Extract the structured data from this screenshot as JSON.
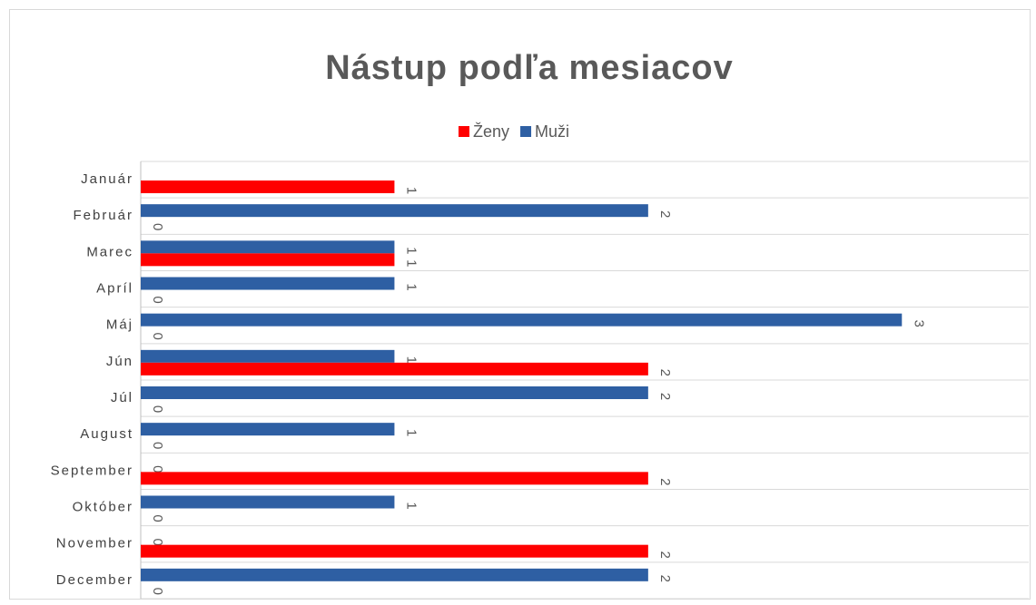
{
  "chart_data": {
    "type": "hbar",
    "title": "Nástup podľa mesiacov",
    "categories": [
      "Január",
      "Február",
      "Marec",
      "Apríl",
      "Máj",
      "Jún",
      "Júl",
      "August",
      "September",
      "Október",
      "November",
      "December"
    ],
    "series": [
      {
        "name": "Ženy",
        "color": "#ff0000",
        "values": [
          1,
          0,
          1,
          0,
          0,
          2,
          0,
          0,
          2,
          0,
          2,
          0
        ]
      },
      {
        "name": "Muži",
        "color": "#2e5fa3",
        "values": [
          null,
          2,
          1,
          1,
          3,
          1,
          2,
          1,
          0,
          1,
          0,
          2
        ]
      }
    ],
    "xlim": [
      0,
      3.5
    ],
    "grid": true,
    "legend": "top"
  }
}
